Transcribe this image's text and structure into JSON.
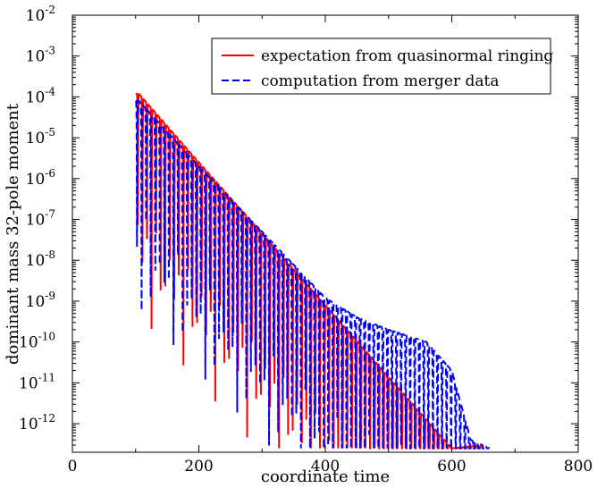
{
  "chart_data": {
    "type": "line",
    "title": "",
    "xlabel": "coordinate time",
    "ylabel": "dominant mass 32-pole moment",
    "xlim": [
      0,
      800
    ],
    "ylim": [
      2e-13,
      0.01
    ],
    "y_scale": "log",
    "grid": false,
    "legend_position": "top-right",
    "x_ticks": [
      {
        "value": 0,
        "label": "0"
      },
      {
        "value": 200,
        "label": "200"
      },
      {
        "value": 400,
        "label": "400"
      },
      {
        "value": 600,
        "label": "600"
      },
      {
        "value": 800,
        "label": "800"
      }
    ],
    "y_ticks": [
      {
        "value": 0.01,
        "base": "10",
        "exp": "-2"
      },
      {
        "value": 0.001,
        "base": "10",
        "exp": "-3"
      },
      {
        "value": 0.0001,
        "base": "10",
        "exp": "-4"
      },
      {
        "value": 1e-05,
        "base": "10",
        "exp": "-5"
      },
      {
        "value": 1e-06,
        "base": "10",
        "exp": "-6"
      },
      {
        "value": 1e-07,
        "base": "10",
        "exp": "-7"
      },
      {
        "value": 1e-08,
        "base": "10",
        "exp": "-8"
      },
      {
        "value": 1e-09,
        "base": "10",
        "exp": "-9"
      },
      {
        "value": 1e-10,
        "base": "10",
        "exp": "-10"
      },
      {
        "value": 1e-11,
        "base": "10",
        "exp": "-11"
      },
      {
        "value": 1e-12,
        "base": "10",
        "exp": "-12"
      }
    ],
    "series": [
      {
        "name": "expectation from quasinormal ringing",
        "color": "#ff0000",
        "dash": "solid",
        "envelope_peaks": {
          "t": [
            105,
            200,
            300,
            400,
            500,
            600,
            650
          ],
          "value": [
            0.00012,
            2.5e-06,
            4.5e-08,
            8e-10,
            1.4e-11,
            2.5e-13,
            3e-13
          ]
        },
        "min_trough": 2.5e-13,
        "period": 7.2,
        "t_range": [
          100,
          650
        ]
      },
      {
        "name": "computation from merger data",
        "color": "#0000ff",
        "dash": "dashed",
        "envelope_peaks": {
          "t": [
            105,
            200,
            300,
            400,
            450,
            500,
            560,
            600,
            630,
            660
          ],
          "value": [
            8e-05,
            2e-06,
            5e-08,
            1.2e-09,
            4e-10,
            2e-10,
            1e-10,
            2e-11,
            4e-13,
            2.5e-13
          ]
        },
        "min_trough": 2.5e-13,
        "period": 7.2,
        "t_range": [
          100,
          660
        ]
      }
    ]
  }
}
